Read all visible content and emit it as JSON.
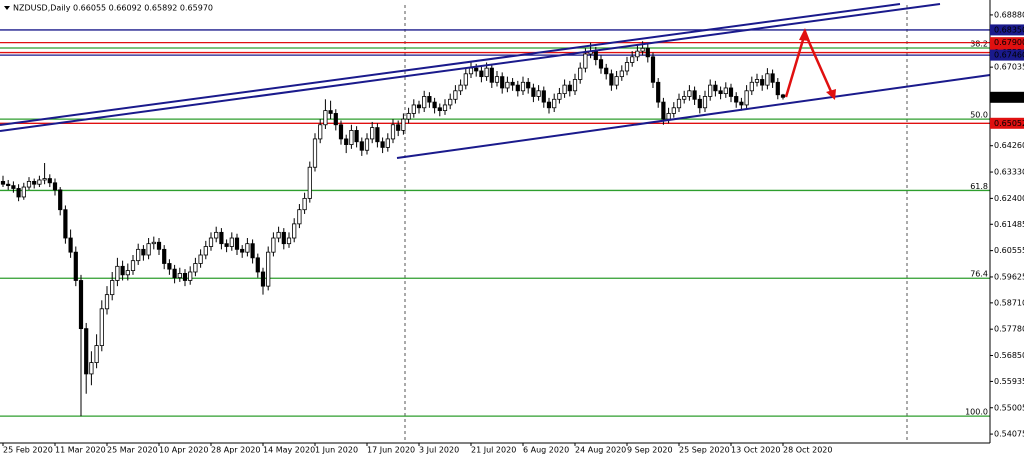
{
  "chart_data": {
    "type": "candlestick",
    "title": "NZDUSD,Daily 0.66055 0.66092 0.65892 0.65970",
    "categories": [
      "25 Feb 2020",
      null,
      null,
      null,
      null,
      null,
      null,
      null,
      null,
      null,
      "11 Mar 2020",
      null,
      null,
      null,
      null,
      null,
      null,
      null,
      null,
      null,
      "25 Mar 2020",
      null,
      null,
      null,
      null,
      null,
      null,
      null,
      null,
      null,
      "10 Apr 2020",
      null,
      null,
      null,
      null,
      null,
      null,
      null,
      null,
      null,
      "28 Apr 2020",
      null,
      null,
      null,
      null,
      null,
      null,
      null,
      null,
      null,
      "14 May 2020",
      null,
      null,
      null,
      null,
      null,
      null,
      null,
      null,
      null,
      "1 Jun 2020",
      null,
      null,
      null,
      null,
      null,
      null,
      null,
      null,
      null,
      "17 Jun 2020",
      null,
      null,
      null,
      null,
      null,
      null,
      null,
      null,
      null,
      "3 Jul 2020",
      null,
      null,
      null,
      null,
      null,
      null,
      null,
      null,
      null,
      "21 Jul 2020",
      null,
      null,
      null,
      null,
      null,
      null,
      null,
      null,
      null,
      "6 Aug 2020",
      null,
      null,
      null,
      null,
      null,
      null,
      null,
      null,
      null,
      "24 Aug 2020",
      null,
      null,
      null,
      null,
      null,
      null,
      null,
      null,
      null,
      "9 Sep 2020",
      null,
      null,
      null,
      null,
      null,
      null,
      null,
      null,
      null,
      "25 Sep 2020",
      null,
      null,
      null,
      null,
      null,
      null,
      null,
      null,
      null,
      "13 Oct 2020",
      null,
      null,
      null,
      null,
      null,
      null,
      null,
      null,
      null,
      "28 Oct 2020"
    ],
    "ohlc": [
      [
        0.63,
        0.632,
        0.628,
        0.629
      ],
      [
        0.629,
        0.6305,
        0.627,
        0.6285
      ],
      [
        0.6285,
        0.63,
        0.626,
        0.6275
      ],
      [
        0.6275,
        0.629,
        0.623,
        0.6245
      ],
      [
        0.6245,
        0.6295,
        0.6235,
        0.628
      ],
      [
        0.628,
        0.6315,
        0.627,
        0.63
      ],
      [
        0.63,
        0.631,
        0.6275,
        0.629
      ],
      [
        0.629,
        0.632,
        0.628,
        0.6305
      ],
      [
        0.6305,
        0.6365,
        0.629,
        0.631
      ],
      [
        0.631,
        0.6325,
        0.628,
        0.6295
      ],
      [
        0.6295,
        0.631,
        0.625,
        0.627
      ],
      [
        0.627,
        0.628,
        0.618,
        0.62
      ],
      [
        0.62,
        0.6215,
        0.608,
        0.61
      ],
      [
        0.61,
        0.613,
        0.603,
        0.605
      ],
      [
        0.605,
        0.607,
        0.593,
        0.595
      ],
      [
        0.595,
        0.597,
        0.5471,
        0.578
      ],
      [
        0.578,
        0.58,
        0.555,
        0.562
      ],
      [
        0.562,
        0.57,
        0.558,
        0.566
      ],
      [
        0.566,
        0.576,
        0.564,
        0.572
      ],
      [
        0.572,
        0.588,
        0.57,
        0.585
      ],
      [
        0.585,
        0.593,
        0.583,
        0.59
      ],
      [
        0.59,
        0.598,
        0.588,
        0.595
      ],
      [
        0.595,
        0.603,
        0.593,
        0.6
      ],
      [
        0.6,
        0.602,
        0.595,
        0.597
      ],
      [
        0.597,
        0.601,
        0.595,
        0.5985
      ],
      [
        0.5985,
        0.604,
        0.597,
        0.602
      ],
      [
        0.602,
        0.608,
        0.6005,
        0.606
      ],
      [
        0.606,
        0.6075,
        0.602,
        0.604
      ],
      [
        0.604,
        0.61,
        0.6025,
        0.608
      ],
      [
        0.608,
        0.6105,
        0.606,
        0.6085
      ],
      [
        0.6085,
        0.61,
        0.604,
        0.606
      ],
      [
        0.606,
        0.6075,
        0.599,
        0.601
      ],
      [
        0.601,
        0.6025,
        0.597,
        0.599
      ],
      [
        0.599,
        0.6005,
        0.594,
        0.596
      ],
      [
        0.596,
        0.5995,
        0.5945,
        0.5975
      ],
      [
        0.5975,
        0.599,
        0.593,
        0.595
      ],
      [
        0.595,
        0.6,
        0.5935,
        0.598
      ],
      [
        0.598,
        0.603,
        0.5965,
        0.601
      ],
      [
        0.601,
        0.606,
        0.5995,
        0.604
      ],
      [
        0.604,
        0.609,
        0.6025,
        0.607
      ],
      [
        0.607,
        0.612,
        0.6055,
        0.61
      ],
      [
        0.61,
        0.614,
        0.6085,
        0.612
      ],
      [
        0.612,
        0.6135,
        0.606,
        0.608
      ],
      [
        0.608,
        0.6095,
        0.605,
        0.607
      ],
      [
        0.607,
        0.612,
        0.6055,
        0.61
      ],
      [
        0.61,
        0.6115,
        0.604,
        0.606
      ],
      [
        0.606,
        0.6075,
        0.603,
        0.605
      ],
      [
        0.605,
        0.61,
        0.6035,
        0.608
      ],
      [
        0.608,
        0.6095,
        0.601,
        0.603
      ],
      [
        0.603,
        0.6045,
        0.596,
        0.598
      ],
      [
        0.598,
        0.5995,
        0.59,
        0.593
      ],
      [
        0.593,
        0.607,
        0.5915,
        0.605
      ],
      [
        0.605,
        0.612,
        0.6035,
        0.61
      ],
      [
        0.61,
        0.614,
        0.6085,
        0.612
      ],
      [
        0.612,
        0.6135,
        0.606,
        0.608
      ],
      [
        0.608,
        0.612,
        0.6065,
        0.61
      ],
      [
        0.61,
        0.617,
        0.6085,
        0.615
      ],
      [
        0.615,
        0.622,
        0.6135,
        0.62
      ],
      [
        0.62,
        0.626,
        0.6185,
        0.624
      ],
      [
        0.624,
        0.637,
        0.6225,
        0.635
      ],
      [
        0.635,
        0.647,
        0.6335,
        0.645
      ],
      [
        0.645,
        0.652,
        0.6435,
        0.65
      ],
      [
        0.65,
        0.659,
        0.6485,
        0.655
      ],
      [
        0.655,
        0.6585,
        0.652,
        0.654
      ],
      [
        0.654,
        0.6555,
        0.648,
        0.65
      ],
      [
        0.65,
        0.6515,
        0.643,
        0.645
      ],
      [
        0.645,
        0.6465,
        0.64,
        0.643
      ],
      [
        0.643,
        0.65,
        0.6415,
        0.648
      ],
      [
        0.648,
        0.6495,
        0.642,
        0.644
      ],
      [
        0.644,
        0.6455,
        0.639,
        0.641
      ],
      [
        0.641,
        0.647,
        0.6395,
        0.645
      ],
      [
        0.645,
        0.651,
        0.6435,
        0.649
      ],
      [
        0.649,
        0.6505,
        0.642,
        0.644
      ],
      [
        0.644,
        0.6455,
        0.64,
        0.642
      ],
      [
        0.642,
        0.647,
        0.6405,
        0.645
      ],
      [
        0.645,
        0.652,
        0.6435,
        0.65
      ],
      [
        0.65,
        0.6515,
        0.646,
        0.648
      ],
      [
        0.648,
        0.654,
        0.6465,
        0.652
      ],
      [
        0.652,
        0.656,
        0.6505,
        0.654
      ],
      [
        0.654,
        0.659,
        0.6525,
        0.657
      ],
      [
        0.657,
        0.6585,
        0.654,
        0.656
      ],
      [
        0.656,
        0.662,
        0.6545,
        0.66
      ],
      [
        0.66,
        0.6615,
        0.656,
        0.658
      ],
      [
        0.658,
        0.6595,
        0.654,
        0.656
      ],
      [
        0.656,
        0.6575,
        0.653,
        0.655
      ],
      [
        0.655,
        0.659,
        0.6535,
        0.657
      ],
      [
        0.657,
        0.661,
        0.6555,
        0.659
      ],
      [
        0.659,
        0.664,
        0.6575,
        0.662
      ],
      [
        0.662,
        0.666,
        0.6605,
        0.664
      ],
      [
        0.664,
        0.67,
        0.6625,
        0.668
      ],
      [
        0.668,
        0.672,
        0.6665,
        0.67
      ],
      [
        0.67,
        0.6715,
        0.667,
        0.669
      ],
      [
        0.669,
        0.6705,
        0.665,
        0.667
      ],
      [
        0.667,
        0.672,
        0.6655,
        0.67
      ],
      [
        0.67,
        0.6715,
        0.663,
        0.665
      ],
      [
        0.665,
        0.669,
        0.6635,
        0.667
      ],
      [
        0.667,
        0.6685,
        0.661,
        0.663
      ],
      [
        0.663,
        0.667,
        0.6615,
        0.665
      ],
      [
        0.665,
        0.6665,
        0.662,
        0.664
      ],
      [
        0.664,
        0.6655,
        0.66,
        0.662
      ],
      [
        0.662,
        0.667,
        0.6605,
        0.665
      ],
      [
        0.665,
        0.6665,
        0.661,
        0.663
      ],
      [
        0.663,
        0.6645,
        0.658,
        0.66
      ],
      [
        0.66,
        0.664,
        0.6585,
        0.662
      ],
      [
        0.662,
        0.6635,
        0.656,
        0.658
      ],
      [
        0.658,
        0.6595,
        0.654,
        0.656
      ],
      [
        0.656,
        0.661,
        0.6545,
        0.659
      ],
      [
        0.659,
        0.663,
        0.6575,
        0.661
      ],
      [
        0.661,
        0.666,
        0.6595,
        0.664
      ],
      [
        0.664,
        0.6655,
        0.66,
        0.662
      ],
      [
        0.662,
        0.668,
        0.6605,
        0.666
      ],
      [
        0.666,
        0.672,
        0.6645,
        0.67
      ],
      [
        0.67,
        0.677,
        0.6685,
        0.675
      ],
      [
        0.675,
        0.679,
        0.6735,
        0.676
      ],
      [
        0.676,
        0.6775,
        0.671,
        0.673
      ],
      [
        0.673,
        0.6745,
        0.668,
        0.67
      ],
      [
        0.67,
        0.6715,
        0.666,
        0.668
      ],
      [
        0.668,
        0.6695,
        0.662,
        0.664
      ],
      [
        0.664,
        0.669,
        0.6625,
        0.667
      ],
      [
        0.667,
        0.671,
        0.6655,
        0.669
      ],
      [
        0.669,
        0.674,
        0.6675,
        0.672
      ],
      [
        0.672,
        0.676,
        0.6705,
        0.674
      ],
      [
        0.674,
        0.678,
        0.6725,
        0.676
      ],
      [
        0.676,
        0.6795,
        0.6745,
        0.677
      ],
      [
        0.677,
        0.6785,
        0.672,
        0.674
      ],
      [
        0.674,
        0.6755,
        0.663,
        0.665
      ],
      [
        0.665,
        0.6665,
        0.656,
        0.658
      ],
      [
        0.658,
        0.6595,
        0.65,
        0.652
      ],
      [
        0.652,
        0.656,
        0.6505,
        0.654
      ],
      [
        0.654,
        0.658,
        0.6525,
        0.656
      ],
      [
        0.656,
        0.661,
        0.6545,
        0.659
      ],
      [
        0.659,
        0.662,
        0.6575,
        0.66
      ],
      [
        0.66,
        0.664,
        0.6585,
        0.662
      ],
      [
        0.662,
        0.6635,
        0.657,
        0.659
      ],
      [
        0.659,
        0.6605,
        0.654,
        0.656
      ],
      [
        0.656,
        0.662,
        0.6545,
        0.66
      ],
      [
        0.66,
        0.666,
        0.6585,
        0.664
      ],
      [
        0.664,
        0.6655,
        0.66,
        0.662
      ],
      [
        0.662,
        0.6635,
        0.659,
        0.661
      ],
      [
        0.661,
        0.665,
        0.6595,
        0.663
      ],
      [
        0.663,
        0.6645,
        0.658,
        0.66
      ],
      [
        0.66,
        0.6615,
        0.656,
        0.658
      ],
      [
        0.658,
        0.6595,
        0.655,
        0.657
      ],
      [
        0.657,
        0.664,
        0.6555,
        0.662
      ],
      [
        0.662,
        0.667,
        0.6605,
        0.665
      ],
      [
        0.665,
        0.668,
        0.6635,
        0.666
      ],
      [
        0.666,
        0.6675,
        0.662,
        0.664
      ],
      [
        0.664,
        0.67,
        0.6625,
        0.668
      ],
      [
        0.668,
        0.6695,
        0.663,
        0.665
      ],
      [
        0.665,
        0.6665,
        0.659,
        0.6606
      ],
      [
        0.66055,
        0.66092,
        0.65892,
        0.6597
      ]
    ],
    "up_color": "#ffffff",
    "down_color": "#000000",
    "ylim": [
      0.5376,
      0.6923
    ],
    "yticks": [
      {
        "value": 0.6888,
        "label": "0.68880"
      },
      0.67035,
      {
        "value": 0.6426,
        "label": "0.64260"
      },
      {
        "value": 0.6333,
        "label": "0.63330"
      },
      {
        "value": 0.624,
        "label": "0.62400"
      },
      0.61485,
      0.60555,
      0.59625,
      {
        "value": 0.5871,
        "label": "0.58710"
      },
      {
        "value": 0.5778,
        "label": "0.57780"
      },
      {
        "value": 0.5685,
        "label": "0.56850"
      },
      0.55935,
      0.55005,
      0.54075
    ],
    "levels": [
      {
        "value": 0.6835,
        "label": "0.68350",
        "color": "#1a1a8c"
      },
      {
        "value": 0.679,
        "label": "0.67900",
        "color": "#e01010"
      },
      {
        "value": 0.6755,
        "label": "0.67550",
        "color": "#e01010"
      },
      {
        "value": 0.6746,
        "label": "0.67460",
        "color": "#1a1a8c"
      },
      {
        "value": 0.6597,
        "label": "0.65970",
        "color": "#000000"
      },
      {
        "value": 0.65052,
        "label": "0.65052",
        "color": "#e01010"
      }
    ],
    "fib_levels": [
      {
        "value": 0.6771,
        "label": "38.2"
      },
      {
        "value": 0.652,
        "label": "50.0"
      },
      {
        "value": 0.6268,
        "label": "61.8"
      },
      {
        "value": 0.5958,
        "label": "76.4"
      },
      {
        "value": 0.5471,
        "label": "100.0"
      }
    ],
    "fib_color": "#2e9e2e"
  }
}
